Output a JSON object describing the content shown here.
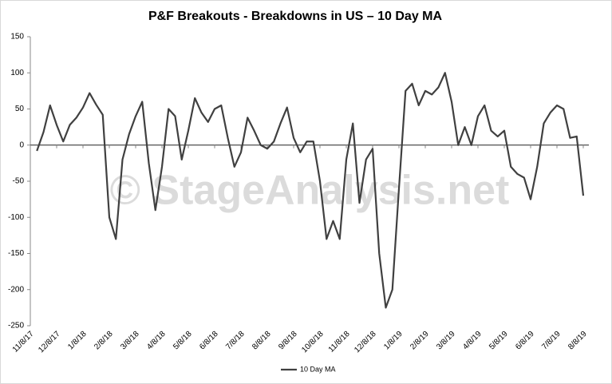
{
  "chart_data": {
    "type": "line",
    "title": "P&F Breakouts - Breakdowns in US – 10 Day MA",
    "watermark": "© StageAnalysis.net",
    "categories": [
      "11/8/17",
      null,
      null,
      null,
      "12/8/17",
      null,
      null,
      null,
      "1/8/18",
      null,
      null,
      null,
      "2/8/18",
      null,
      null,
      null,
      "3/8/18",
      null,
      null,
      null,
      "4/8/18",
      null,
      null,
      null,
      "5/8/18",
      null,
      null,
      null,
      "6/8/18",
      null,
      null,
      null,
      "7/8/18",
      null,
      null,
      null,
      "8/8/18",
      null,
      null,
      null,
      "9/8/18",
      null,
      null,
      null,
      "10/8/18",
      null,
      null,
      null,
      "11/8/18",
      null,
      null,
      null,
      "12/8/18",
      null,
      null,
      null,
      "1/8/19",
      null,
      null,
      null,
      "2/8/19",
      null,
      null,
      null,
      "3/8/19",
      null,
      null,
      null,
      "4/8/19",
      null,
      null,
      null,
      "5/8/19",
      null,
      null,
      null,
      "6/8/19",
      null,
      null,
      null,
      "7/8/19",
      null,
      null,
      null,
      "8/8/19"
    ],
    "series": [
      {
        "name": "10 Day MA",
        "color": "#404040",
        "values": [
          null,
          -8,
          18,
          55,
          28,
          5,
          28,
          38,
          52,
          72,
          56,
          42,
          -100,
          -130,
          -20,
          15,
          40,
          60,
          -25,
          -90,
          -30,
          50,
          40,
          -20,
          20,
          65,
          45,
          32,
          50,
          55,
          10,
          -30,
          -10,
          38,
          20,
          0,
          -5,
          5,
          30,
          52,
          10,
          -10,
          5,
          5,
          -50,
          -130,
          -105,
          -130,
          -20,
          30,
          -80,
          -20,
          -5,
          -150,
          -225,
          -200,
          -60,
          75,
          85,
          55,
          75,
          70,
          80,
          100,
          60,
          0,
          25,
          0,
          40,
          55,
          20,
          12,
          20,
          -30,
          -40,
          -45,
          -75,
          -30,
          30,
          45,
          55,
          50,
          10,
          12,
          -70
        ]
      }
    ],
    "ylim": [
      -250,
      150
    ],
    "yticks": [
      -250,
      -200,
      -150,
      -100,
      -50,
      0,
      50,
      100,
      150
    ],
    "grid": false,
    "legend": "bottom"
  }
}
